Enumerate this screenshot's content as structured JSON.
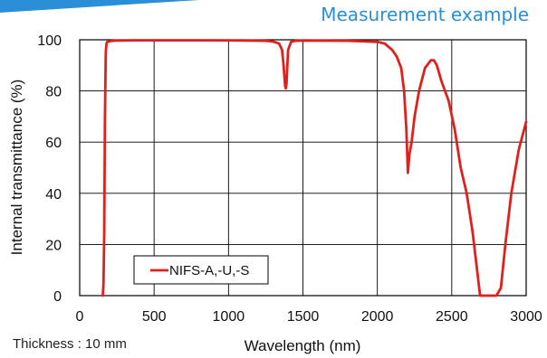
{
  "heading": "Measurement example",
  "note": "Thickness : 10 mm",
  "colors": {
    "accent": "#2a8fd6",
    "series": "#e0201c"
  },
  "chart_data": {
    "type": "line",
    "xlabel": "Wavelength (nm)",
    "ylabel": "Internal transmittance (%)",
    "xlim": [
      0,
      3000
    ],
    "ylim": [
      0,
      100
    ],
    "xticks": [
      "0",
      "500",
      "1000",
      "1500",
      "2000",
      "2500",
      "3000"
    ],
    "yticks": [
      "0",
      "20",
      "40",
      "60",
      "80",
      "100"
    ],
    "grid": true,
    "legend_position": "bottom-left",
    "series": [
      {
        "name": "NIFS-A,-U,-S",
        "x": [
          155,
          160,
          165,
          170,
          175,
          180,
          185,
          195,
          210,
          250,
          400,
          800,
          1100,
          1250,
          1300,
          1340,
          1360,
          1370,
          1380,
          1385,
          1390,
          1400,
          1420,
          1450,
          1500,
          1800,
          2000,
          2050,
          2070,
          2100,
          2130,
          2160,
          2180,
          2195,
          2205,
          2215,
          2230,
          2250,
          2280,
          2320,
          2360,
          2380,
          2400,
          2430,
          2480,
          2520,
          2560,
          2600,
          2640,
          2670,
          2690,
          2710,
          2730,
          2760,
          2800,
          2830,
          2860,
          2900,
          2950,
          3000
        ],
        "y": [
          0,
          5,
          25,
          70,
          95,
          98.5,
          99.2,
          99.3,
          99.5,
          99.7,
          99.8,
          99.8,
          99.7,
          99.6,
          99.3,
          98.5,
          96,
          90,
          82,
          81,
          83,
          96,
          99.2,
          99.6,
          99.7,
          99.6,
          99.2,
          98.5,
          97.5,
          96,
          93.5,
          89,
          80,
          65,
          48,
          55,
          60,
          70,
          80,
          89,
          92,
          92,
          90,
          84,
          76,
          65,
          50,
          40,
          25,
          10,
          0,
          0,
          0,
          0,
          0,
          3,
          20,
          40,
          57,
          68
        ]
      }
    ]
  }
}
